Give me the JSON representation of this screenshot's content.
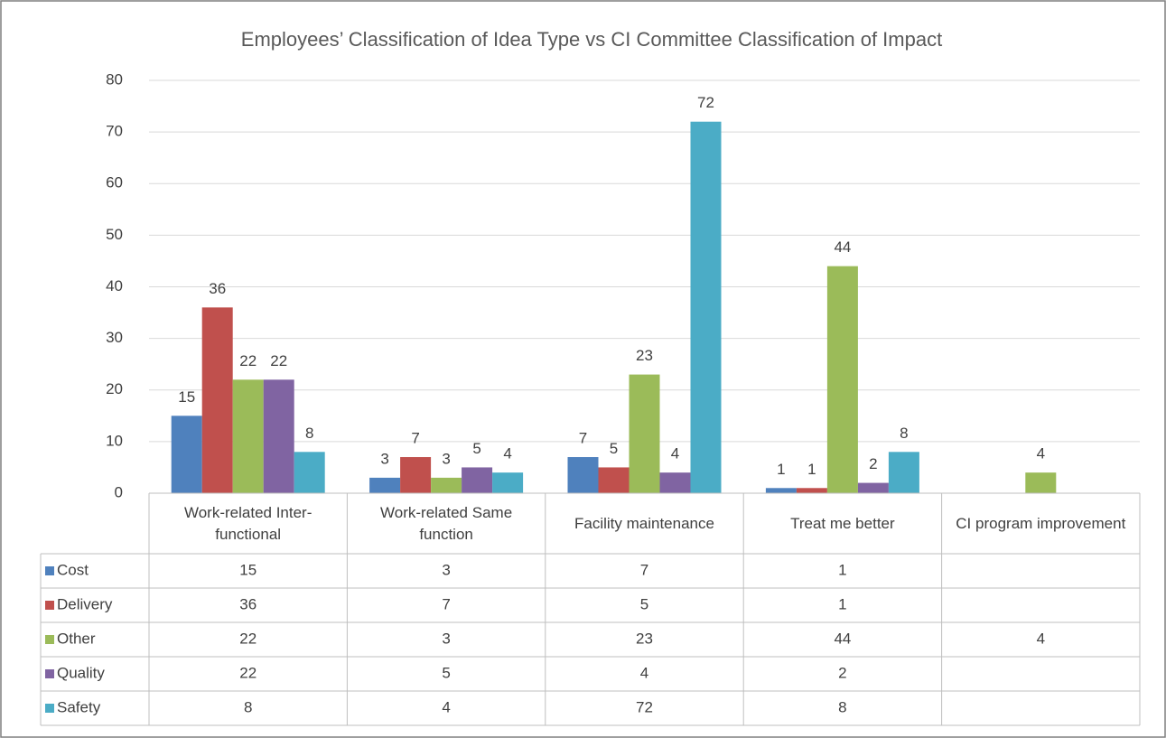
{
  "chart_data": {
    "type": "bar",
    "title": "Employees’ Classification of Idea Type vs CI Committee Classification of Impact",
    "categories": [
      "Work-related Inter-functional",
      "Work-related Same function",
      "Facility maintenance",
      "Treat me better",
      "CI program improvement"
    ],
    "series": [
      {
        "name": "Cost",
        "color": "#4f81bd",
        "values": [
          15,
          3,
          7,
          1,
          null
        ]
      },
      {
        "name": "Delivery",
        "color": "#c0504d",
        "values": [
          36,
          7,
          5,
          1,
          null
        ]
      },
      {
        "name": "Other",
        "color": "#9bbb59",
        "values": [
          22,
          3,
          23,
          44,
          4
        ]
      },
      {
        "name": "Quality",
        "color": "#8064a2",
        "values": [
          22,
          5,
          4,
          2,
          null
        ]
      },
      {
        "name": "Safety",
        "color": "#4bacc6",
        "values": [
          8,
          4,
          72,
          8,
          null
        ]
      }
    ],
    "ylim": [
      0,
      80
    ],
    "yticks": [
      0,
      10,
      20,
      30,
      40,
      50,
      60,
      70,
      80
    ],
    "grid": true
  }
}
